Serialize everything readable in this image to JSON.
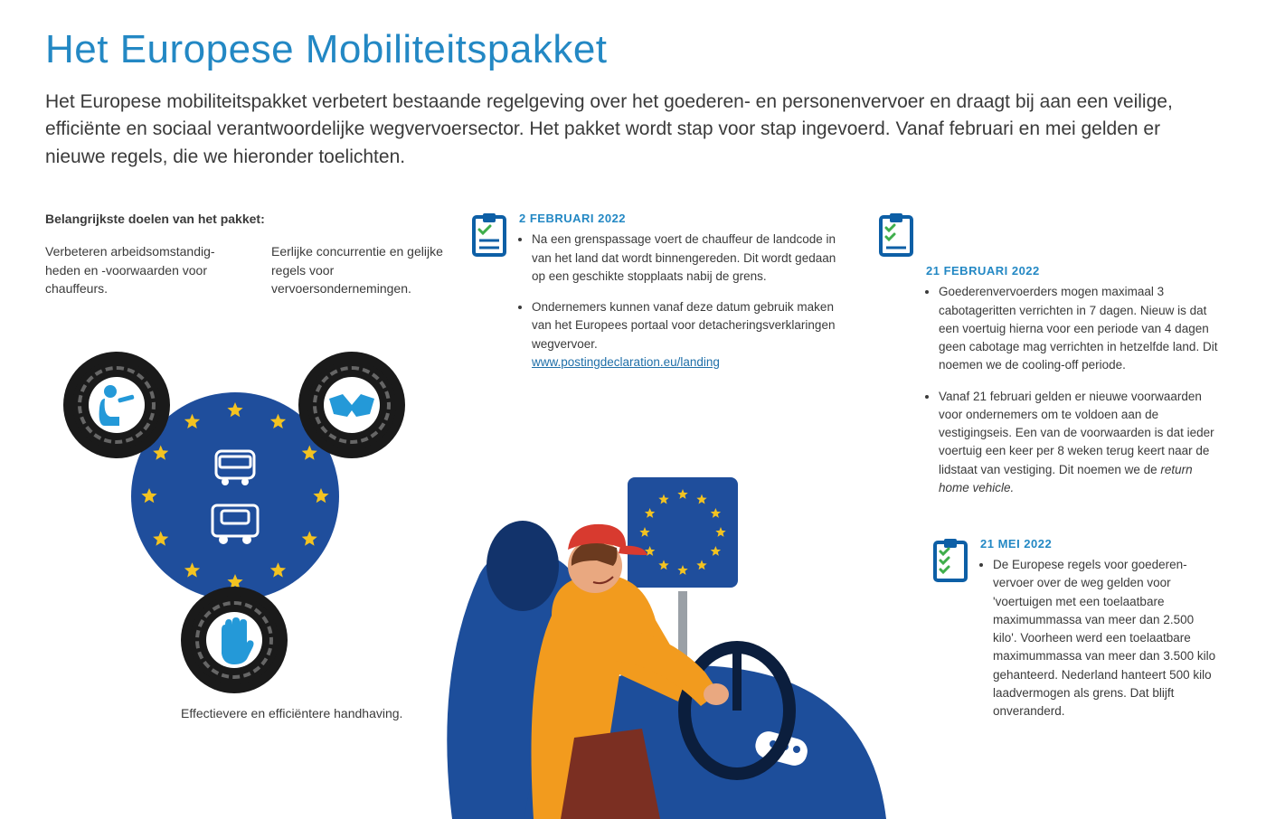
{
  "title": "Het Europese Mobiliteitspakket",
  "intro": "Het Europese mobiliteitspakket verbetert bestaande regelgeving over het goederen- en personenvervoer en draagt bij aan een veilige, efficiënte en sociaal verantwoordelijke wegvervoersector. Het pakket wordt stap voor stap ingevoerd. Vanaf februari en mei gelden er nieuwe regels, die we hieronder toelichten.",
  "goals_heading": "Belangrijkste doelen van het pakket:",
  "goals": {
    "g1": "Verbeteren arbeidsomstandig­heden en -voorwaarden voor chauffeurs.",
    "g2": "Eerlijke concurrentie en gelijke regels voor vervoersondernemingen.",
    "g3": "Effectievere en efficiëntere handhaving."
  },
  "diagram": {
    "eu_bg": "#1f4e9c",
    "star_color": "#f3c321",
    "tire_color": "#1a1a1a",
    "icon_blue": "#2499d8",
    "star_count": 12
  },
  "dates": {
    "d1": {
      "label": "2 FEBRUARI 2022",
      "b1": "Na een grenspassage voert de chauffeur de landcode in van het land dat wordt binnen­gereden. Dit wordt gedaan op een geschikte stopplaats nabij de grens.",
      "b2": "Ondernemers kunnen vanaf deze datum gebruik maken van het Europees portaal voor detacheringsverklaringen wegvervoer.",
      "link_text": "www.postingdeclaration.eu/landing"
    },
    "d2": {
      "label": "21 FEBRUARI 2022",
      "b1": "Goederenvervoerders mogen maximaal 3 cabotage­ritten verrichten in 7 dagen. Nieuw is dat een voertuig hierna voor een periode van 4 dagen geen cabotage mag verrichten in hetzelfde land. Dit noemen we de cooling-off periode.",
      "b2_prefix": "Vanaf 21 februari gelden er nieuwe voorwaarden voor ondernemers om te voldoen aan de vestigingseis. Een van de voorwaarden is dat ieder voertuig een keer per 8 weken terug keert naar de lidstaat van vestiging. Dit noemen we de ",
      "b2_term": "return home vehicle."
    },
    "d3": {
      "label": "21 MEI 2022",
      "b1": "De Europese regels voor goederen­vervoer over de weg gelden voor 'voertuigen met een toelaatbare maximummassa van meer dan 2.500 kilo'. Voorheen werd een toelaatbare maximummassa van meer dan 3.500 kilo gehanteerd. Nederland hanteert 500 kilo laad­vermogen als grens. Dat blijft onveranderd."
    }
  },
  "colors": {
    "title": "#2388c4",
    "text": "#3a3a3a",
    "link": "#1f6fa8",
    "date": "#2388c4",
    "sign_bg": "#1f4e9c",
    "driver_seat": "#1d4e9b",
    "driver_shirt": "#f29b1e",
    "driver_cap": "#d83a2f",
    "driver_pants": "#7b2f22",
    "skin": "#e9a880",
    "check_green": "#3fae4b",
    "clip_blue": "#0d5fa6"
  },
  "typography": {
    "title_size": 44,
    "intro_size": 21,
    "body_size": 13.5,
    "heading_size": 14,
    "date_size": 13
  }
}
